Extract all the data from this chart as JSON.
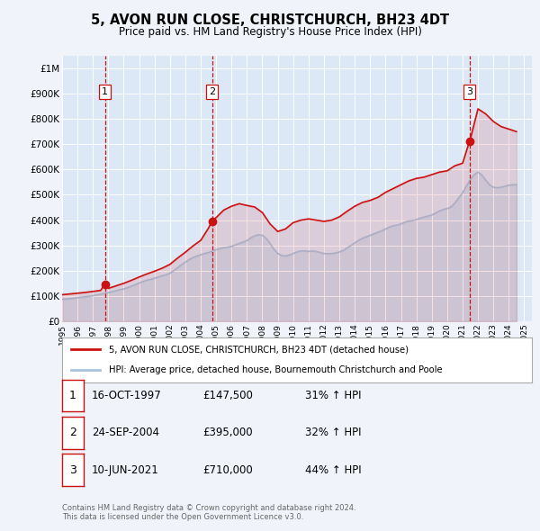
{
  "title": "5, AVON RUN CLOSE, CHRISTCHURCH, BH23 4DT",
  "subtitle": "Price paid vs. HM Land Registry's House Price Index (HPI)",
  "background_color": "#f0f4fa",
  "plot_bg_color": "#dce8f5",
  "grid_color": "#ffffff",
  "hpi_color": "#a8c4e0",
  "price_color": "#cc1111",
  "sale_marker_color": "#cc1111",
  "sales": [
    {
      "year": 1997.79,
      "price": 147500,
      "label": "1"
    },
    {
      "year": 2004.73,
      "price": 395000,
      "label": "2"
    },
    {
      "year": 2021.44,
      "price": 710000,
      "label": "3"
    }
  ],
  "xmin": 1995,
  "xmax": 2025.5,
  "ymin": 0,
  "ymax": 1050000,
  "yticks": [
    0,
    100000,
    200000,
    300000,
    400000,
    500000,
    600000,
    700000,
    800000,
    900000,
    1000000
  ],
  "ytick_labels": [
    "£0",
    "£100K",
    "£200K",
    "£300K",
    "£400K",
    "£500K",
    "£600K",
    "£700K",
    "£800K",
    "£900K",
    "£1M"
  ],
  "xticks": [
    1995,
    1996,
    1997,
    1998,
    1999,
    2000,
    2001,
    2002,
    2003,
    2004,
    2005,
    2006,
    2007,
    2008,
    2009,
    2010,
    2011,
    2012,
    2013,
    2014,
    2015,
    2016,
    2017,
    2018,
    2019,
    2020,
    2021,
    2022,
    2023,
    2024,
    2025
  ],
  "legend_label_price": "5, AVON RUN CLOSE, CHRISTCHURCH, BH23 4DT (detached house)",
  "legend_label_hpi": "HPI: Average price, detached house, Bournemouth Christchurch and Poole",
  "table_rows": [
    {
      "num": "1",
      "date": "16-OCT-1997",
      "price": "£147,500",
      "change": "31% ↑ HPI"
    },
    {
      "num": "2",
      "date": "24-SEP-2004",
      "price": "£395,000",
      "change": "32% ↑ HPI"
    },
    {
      "num": "3",
      "date": "10-JUN-2021",
      "price": "£710,000",
      "change": "44% ↑ HPI"
    }
  ],
  "footer": "Contains HM Land Registry data © Crown copyright and database right 2024.\nThis data is licensed under the Open Government Licence v3.0.",
  "hpi_data_x": [
    1995.0,
    1995.25,
    1995.5,
    1995.75,
    1996.0,
    1996.25,
    1996.5,
    1996.75,
    1997.0,
    1997.25,
    1997.5,
    1997.75,
    1998.0,
    1998.25,
    1998.5,
    1998.75,
    1999.0,
    1999.25,
    1999.5,
    1999.75,
    2000.0,
    2000.25,
    2000.5,
    2000.75,
    2001.0,
    2001.25,
    2001.5,
    2001.75,
    2002.0,
    2002.25,
    2002.5,
    2002.75,
    2003.0,
    2003.25,
    2003.5,
    2003.75,
    2004.0,
    2004.25,
    2004.5,
    2004.75,
    2005.0,
    2005.25,
    2005.5,
    2005.75,
    2006.0,
    2006.25,
    2006.5,
    2006.75,
    2007.0,
    2007.25,
    2007.5,
    2007.75,
    2008.0,
    2008.25,
    2008.5,
    2008.75,
    2009.0,
    2009.25,
    2009.5,
    2009.75,
    2010.0,
    2010.25,
    2010.5,
    2010.75,
    2011.0,
    2011.25,
    2011.5,
    2011.75,
    2012.0,
    2012.25,
    2012.5,
    2012.75,
    2013.0,
    2013.25,
    2013.5,
    2013.75,
    2014.0,
    2014.25,
    2014.5,
    2014.75,
    2015.0,
    2015.25,
    2015.5,
    2015.75,
    2016.0,
    2016.25,
    2016.5,
    2016.75,
    2017.0,
    2017.25,
    2017.5,
    2017.75,
    2018.0,
    2018.25,
    2018.5,
    2018.75,
    2019.0,
    2019.25,
    2019.5,
    2019.75,
    2020.0,
    2020.25,
    2020.5,
    2020.75,
    2021.0,
    2021.25,
    2021.5,
    2021.75,
    2022.0,
    2022.25,
    2022.5,
    2022.75,
    2023.0,
    2023.25,
    2023.5,
    2023.75,
    2024.0,
    2024.25,
    2024.5
  ],
  "hpi_data_y": [
    87000,
    88000,
    89500,
    91000,
    93000,
    95000,
    97000,
    99000,
    101000,
    104000,
    107000,
    110000,
    113000,
    117000,
    121000,
    125000,
    128000,
    133000,
    139000,
    145000,
    151000,
    157000,
    162000,
    166000,
    170000,
    175000,
    180000,
    184000,
    190000,
    200000,
    212000,
    224000,
    234000,
    244000,
    252000,
    258000,
    263000,
    268000,
    272000,
    278000,
    283000,
    288000,
    291000,
    293000,
    296000,
    302000,
    308000,
    313000,
    319000,
    330000,
    338000,
    342000,
    340000,
    328000,
    308000,
    285000,
    268000,
    260000,
    258000,
    262000,
    268000,
    274000,
    278000,
    278000,
    276000,
    278000,
    276000,
    272000,
    268000,
    267000,
    268000,
    270000,
    274000,
    280000,
    290000,
    300000,
    310000,
    320000,
    328000,
    334000,
    340000,
    346000,
    352000,
    358000,
    365000,
    372000,
    378000,
    380000,
    385000,
    392000,
    396000,
    398000,
    402000,
    408000,
    412000,
    416000,
    420000,
    428000,
    436000,
    442000,
    446000,
    452000,
    468000,
    488000,
    508000,
    535000,
    560000,
    580000,
    590000,
    578000,
    558000,
    540000,
    530000,
    528000,
    530000,
    534000,
    538000,
    540000,
    540000
  ],
  "price_index_x": [
    1995.0,
    1995.5,
    1996.0,
    1996.5,
    1997.0,
    1997.5,
    1997.79,
    1998.0,
    1998.5,
    1999.0,
    1999.5,
    2000.0,
    2000.5,
    2001.0,
    2001.5,
    2002.0,
    2002.5,
    2003.0,
    2003.5,
    2004.0,
    2004.5,
    2004.73,
    2005.0,
    2005.5,
    2006.0,
    2006.5,
    2007.0,
    2007.5,
    2008.0,
    2008.5,
    2009.0,
    2009.5,
    2010.0,
    2010.5,
    2011.0,
    2011.5,
    2012.0,
    2012.5,
    2013.0,
    2013.5,
    2014.0,
    2014.5,
    2015.0,
    2015.5,
    2016.0,
    2016.5,
    2017.0,
    2017.5,
    2018.0,
    2018.5,
    2019.0,
    2019.5,
    2020.0,
    2020.5,
    2021.0,
    2021.44,
    2021.5,
    2022.0,
    2022.5,
    2023.0,
    2023.5,
    2024.0,
    2024.5
  ],
  "price_index_y": [
    105000,
    108000,
    111000,
    114000,
    118000,
    122000,
    147500,
    130000,
    140000,
    150000,
    162000,
    175000,
    187000,
    198000,
    210000,
    225000,
    250000,
    273000,
    298000,
    320000,
    368000,
    395000,
    410000,
    440000,
    455000,
    465000,
    458000,
    452000,
    430000,
    385000,
    355000,
    365000,
    390000,
    400000,
    405000,
    400000,
    395000,
    400000,
    413000,
    435000,
    455000,
    470000,
    478000,
    490000,
    510000,
    525000,
    540000,
    555000,
    565000,
    570000,
    580000,
    590000,
    595000,
    615000,
    625000,
    710000,
    720000,
    840000,
    820000,
    790000,
    770000,
    760000,
    750000
  ]
}
